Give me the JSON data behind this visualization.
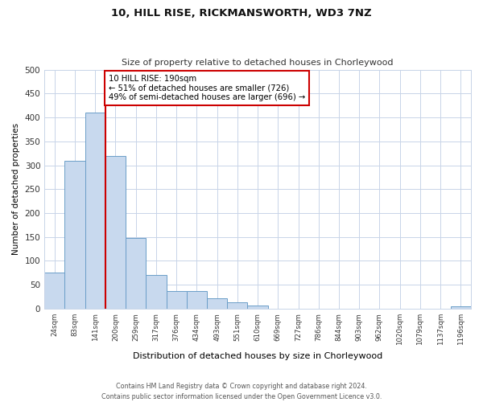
{
  "title": "10, HILL RISE, RICKMANSWORTH, WD3 7NZ",
  "subtitle": "Size of property relative to detached houses in Chorleywood",
  "xlabel": "Distribution of detached houses by size in Chorleywood",
  "ylabel": "Number of detached properties",
  "bin_labels": [
    "24sqm",
    "83sqm",
    "141sqm",
    "200sqm",
    "259sqm",
    "317sqm",
    "376sqm",
    "434sqm",
    "493sqm",
    "551sqm",
    "610sqm",
    "669sqm",
    "727sqm",
    "786sqm",
    "844sqm",
    "903sqm",
    "962sqm",
    "1020sqm",
    "1079sqm",
    "1137sqm",
    "1196sqm"
  ],
  "bar_heights": [
    75,
    310,
    410,
    320,
    148,
    70,
    37,
    37,
    22,
    13,
    6,
    0,
    0,
    0,
    0,
    0,
    0,
    0,
    0,
    0,
    5
  ],
  "bar_color": "#c8d9ee",
  "bar_edge_color": "#6b9ec8",
  "marker_color": "#cc0000",
  "annotation_line1": "10 HILL RISE: 190sqm",
  "annotation_line2": "← 51% of detached houses are smaller (726)",
  "annotation_line3": "49% of semi-detached houses are larger (696) →",
  "annotation_box_color": "#ffffff",
  "annotation_box_edge": "#cc0000",
  "ylim": [
    0,
    500
  ],
  "yticks": [
    0,
    50,
    100,
    150,
    200,
    250,
    300,
    350,
    400,
    450,
    500
  ],
  "footer_line1": "Contains HM Land Registry data © Crown copyright and database right 2024.",
  "footer_line2": "Contains public sector information licensed under the Open Government Licence v3.0.",
  "bg_color": "#ffffff",
  "grid_color": "#c8d4e8"
}
